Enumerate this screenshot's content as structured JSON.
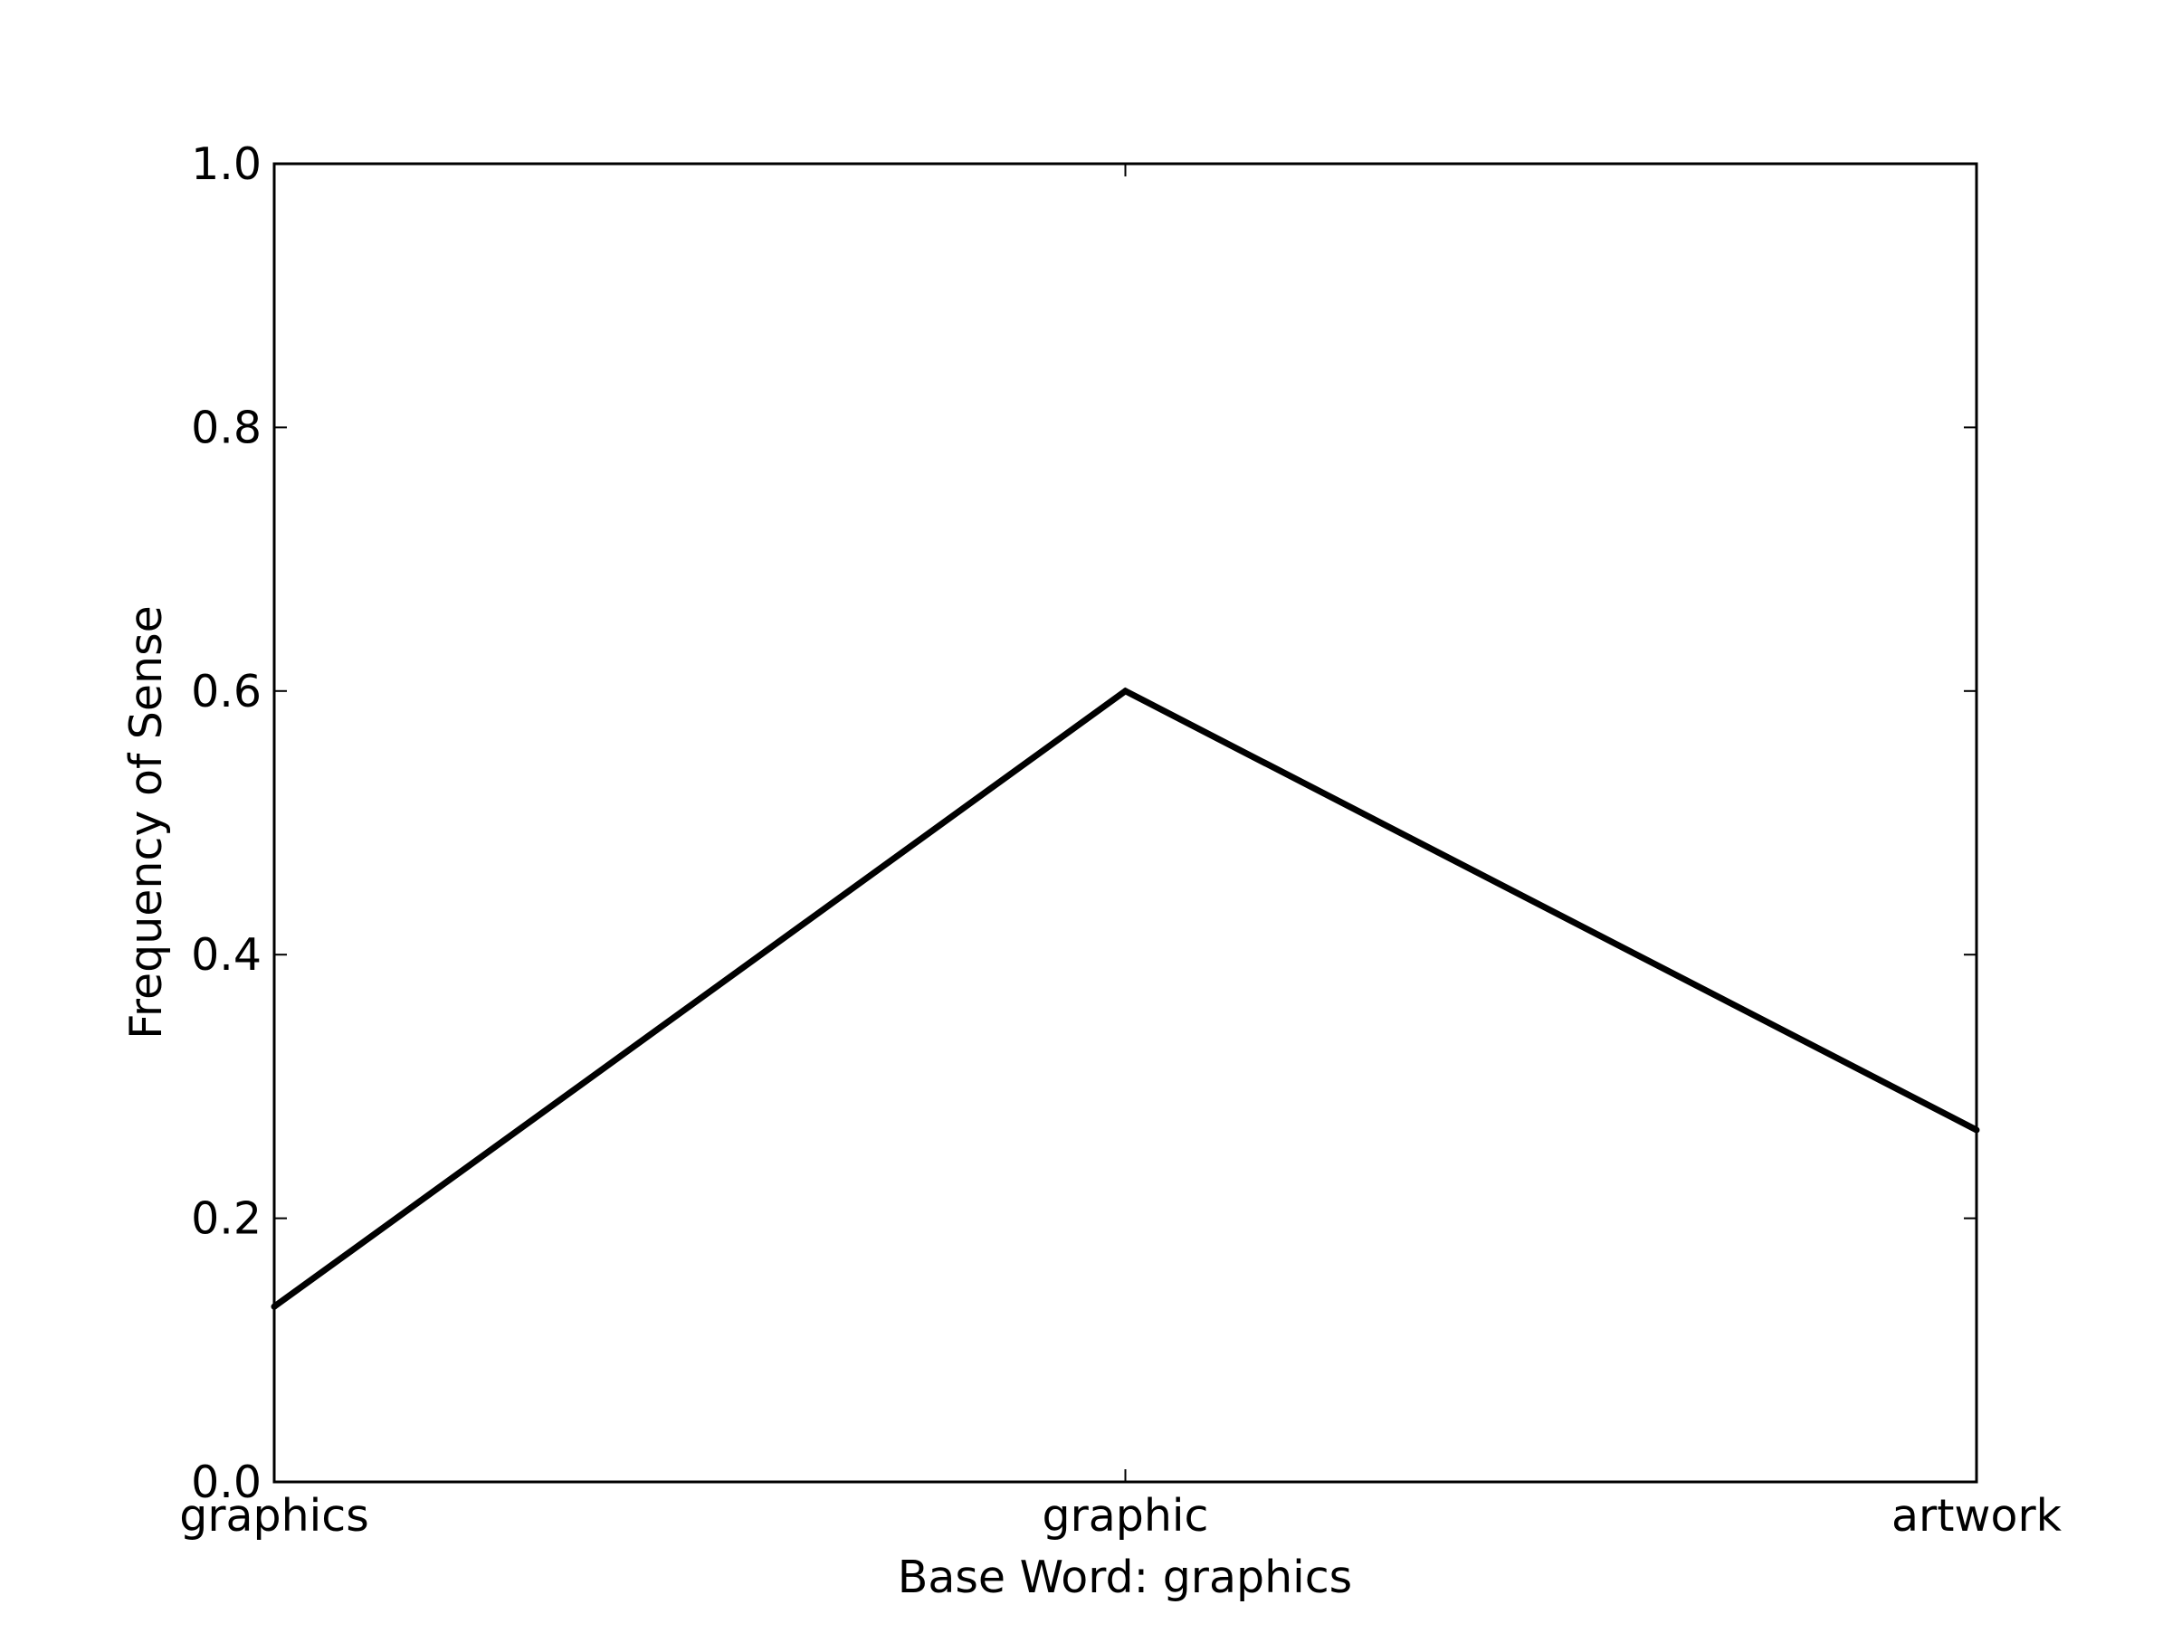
{
  "chart_data": {
    "type": "line",
    "title": "",
    "xlabel": "Base Word: graphics",
    "ylabel": "Frequency of Sense",
    "categories": [
      "graphics",
      "graphic",
      "artwork"
    ],
    "series": [
      {
        "values": [
          0.133,
          0.6,
          0.267
        ]
      }
    ],
    "ylim": [
      0.0,
      1.0
    ],
    "yticks": [
      "0.0",
      "0.2",
      "0.4",
      "0.6",
      "0.8",
      "1.0"
    ],
    "grid": false,
    "line_color": "#000000"
  }
}
